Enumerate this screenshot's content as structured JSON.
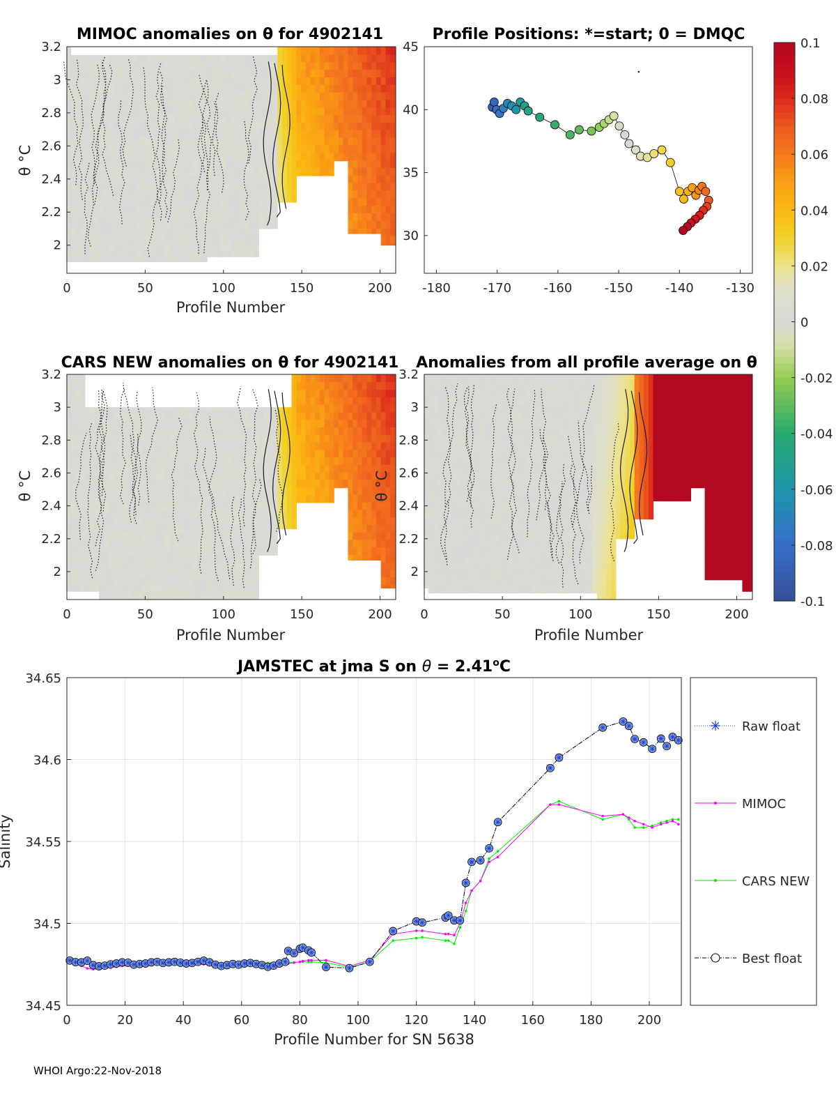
{
  "footer": "WHOI Argo:22-Nov-2018",
  "colors": {
    "raw_float": "#1f3fd0",
    "mimoc": "#ff00ff",
    "cars_new": "#00ee00",
    "best_float": "#000000",
    "no_anomaly": "#d8d8d8"
  },
  "chart_data": [
    {
      "type": "heatmap",
      "title": "MIMOC anomalies on θ  for 4902141",
      "xlabel": "Profile Number",
      "ylabel": "θ °C",
      "xlim": [
        0,
        210
      ],
      "ylim": [
        1.83,
        3.2
      ],
      "xticks": [
        "0",
        "50",
        "100",
        "150",
        "200"
      ],
      "yticks": [
        "2",
        "2.2",
        "2.4",
        "2.6",
        "2.8",
        "3",
        "3.2"
      ],
      "summary": "near-zero anomaly (gray) for profiles 0-135; positive anomalies 0.03-0.07 (yellow to orange) for profiles 140-210"
    },
    {
      "type": "scatter",
      "title": "Profile Positions: *=start; 0 = DMQC",
      "xlim": [
        -182,
        -128
      ],
      "ylim": [
        27,
        45
      ],
      "xticks": [
        "-180",
        "-170",
        "-160",
        "-150",
        "-140",
        "-130"
      ],
      "yticks": [
        "30",
        "35",
        "40",
        "45"
      ],
      "x": [
        -170.8,
        -170.5,
        -170.1,
        -169.6,
        -169.0,
        -168.3,
        -167.6,
        -166.9,
        -166.2,
        -165.5,
        -164.9,
        -163.0,
        -160.5,
        -158.0,
        -156.5,
        -154.5,
        -153.2,
        -152.4,
        -151.6,
        -150.8,
        -149.9,
        -149.0,
        -148.3,
        -147.2,
        -146.4,
        -145.3,
        -144.2,
        -142.9,
        -141.5,
        -140.0,
        -139.3,
        -138.6,
        -137.9,
        -137.3,
        -136.8,
        -136.3,
        -135.7,
        -135.2,
        -135.5,
        -136.1,
        -136.7,
        -137.4,
        -138.1,
        -138.7,
        -139.4
      ],
      "y": [
        40.2,
        40.6,
        40.0,
        39.7,
        40.1,
        40.5,
        40.3,
        40.0,
        40.6,
        40.3,
        39.9,
        39.4,
        38.8,
        38.0,
        38.4,
        38.3,
        38.6,
        38.9,
        39.2,
        39.5,
        38.7,
        38.0,
        37.3,
        36.8,
        36.3,
        36.2,
        36.5,
        36.8,
        35.8,
        33.5,
        32.9,
        33.5,
        33.8,
        33.2,
        33.6,
        33.9,
        33.5,
        32.8,
        32.3,
        32.0,
        31.6,
        31.3,
        31.0,
        30.7,
        30.4
      ],
      "color_by": "profile number"
    },
    {
      "type": "colorbar",
      "ticks": [
        "0.1",
        "0.08",
        "0.06",
        "0.04",
        "0.02",
        "0",
        "-0.02",
        "-0.04",
        "-0.06",
        "-0.08",
        "-0.1"
      ],
      "range": [
        -0.1,
        0.1
      ]
    },
    {
      "type": "heatmap",
      "title": "CARS NEW anomalies on θ for 4902141",
      "xlabel": "Profile Number",
      "ylabel": "θ °C",
      "xlim": [
        0,
        210
      ],
      "ylim": [
        1.83,
        3.2
      ],
      "xticks": [
        "0",
        "50",
        "100",
        "150",
        "200"
      ],
      "yticks": [
        "2",
        "2.2",
        "2.4",
        "2.6",
        "2.8",
        "3",
        "3.2"
      ],
      "summary": "near-zero anomaly for profiles 0-135; positive anomalies 0.03-0.07 for profiles 140-210"
    },
    {
      "type": "heatmap",
      "title": "Anomalies from all profile average on θ",
      "xlabel": "Profile Number",
      "ylabel": "θ °C",
      "xlim": [
        0,
        210
      ],
      "ylim": [
        1.83,
        3.2
      ],
      "xticks": [
        "0",
        "50",
        "100",
        "150",
        "200"
      ],
      "yticks": [
        "2",
        "2.2",
        "2.4",
        "2.6",
        "2.8",
        "3",
        "3.2"
      ],
      "summary": "near-zero anomaly for profiles 0-110; slight positive 110-135; strong positive >0.1 for profiles 148-210"
    },
    {
      "type": "line",
      "title": "JAMSTEC at jma S on θ = 2.41°C",
      "title_parts": [
        "JAMSTEC at jma S on ",
        "θ",
        " = 2.41",
        "o",
        "C"
      ],
      "xlabel": "Profile Number for SN 5638",
      "ylabel": "Salinity",
      "xlim": [
        0,
        211
      ],
      "ylim": [
        34.45,
        34.65
      ],
      "xticks": [
        "0",
        "20",
        "40",
        "60",
        "80",
        "100",
        "120",
        "140",
        "160",
        "180",
        "200"
      ],
      "yticks": [
        "34.45",
        "34.5",
        "34.55",
        "34.6",
        "34.65"
      ],
      "grid": true,
      "legend": [
        "Raw float",
        "MIMOC",
        "CARS NEW",
        "Best float"
      ],
      "legend_position": "outside-right",
      "x": [
        1,
        3,
        5,
        7,
        9,
        11,
        13,
        15,
        17,
        19,
        21,
        23,
        25,
        27,
        29,
        31,
        33,
        35,
        37,
        39,
        41,
        43,
        45,
        47,
        49,
        51,
        53,
        55,
        57,
        59,
        61,
        63,
        65,
        67,
        69,
        71,
        73,
        75,
        76,
        78,
        80,
        81,
        83,
        84,
        89,
        97,
        104,
        112,
        120,
        122,
        130,
        131,
        133,
        135,
        137,
        139,
        142,
        145,
        148,
        166,
        169,
        184,
        191,
        193,
        195,
        198,
        201,
        204,
        206,
        208,
        210
      ],
      "series": [
        {
          "name": "Raw float",
          "values": [
            34.4773,
            34.4763,
            34.4762,
            34.4772,
            34.4745,
            34.4738,
            34.4742,
            34.475,
            34.4755,
            34.4762,
            34.476,
            34.4748,
            34.4752,
            34.4755,
            34.4762,
            34.4765,
            34.4758,
            34.4762,
            34.4765,
            34.476,
            34.4755,
            34.4758,
            34.4765,
            34.4772,
            34.4762,
            34.4748,
            34.474,
            34.4745,
            34.4752,
            34.4748,
            34.4755,
            34.4758,
            34.4752,
            34.4745,
            34.4735,
            34.4742,
            34.4755,
            34.4765,
            34.4832,
            34.4818,
            34.4845,
            34.4852,
            34.4835,
            34.4822,
            34.4733,
            34.4727,
            34.4765,
            34.4953,
            34.5012,
            34.5005,
            34.5035,
            34.5048,
            34.5018,
            34.5018,
            34.5247,
            34.5375,
            34.5385,
            34.5458,
            34.5618,
            34.5948,
            34.6012,
            34.6195,
            34.6232,
            34.6205,
            34.6125,
            34.6105,
            34.6065,
            34.6128,
            34.6082,
            34.6138,
            34.6118
          ]
        },
        {
          "name": "MIMOC",
          "values": [
            34.4775,
            34.4755,
            34.474,
            34.4725,
            34.472,
            34.4722,
            34.4725,
            34.473,
            34.4735,
            34.474,
            34.4742,
            34.4745,
            34.4748,
            34.475,
            34.475,
            34.4752,
            34.4752,
            34.4752,
            34.4752,
            34.4752,
            34.475,
            34.475,
            34.475,
            34.475,
            34.4748,
            34.4748,
            34.4748,
            34.4748,
            34.4748,
            34.4748,
            34.4748,
            34.4748,
            34.4748,
            34.4748,
            34.4748,
            34.4748,
            34.475,
            34.4752,
            34.4755,
            34.476,
            34.4765,
            34.477,
            34.4775,
            34.4775,
            34.4775,
            34.4738,
            34.4775,
            34.4935,
            34.4955,
            34.4955,
            34.4935,
            34.4935,
            34.4928,
            34.5,
            34.5125,
            34.52,
            34.5258,
            34.5375,
            34.5405,
            34.5725,
            34.5725,
            34.5655,
            34.5665,
            34.5645,
            34.5625,
            34.5605,
            34.5585,
            34.5605,
            34.5615,
            34.5625,
            34.5605
          ]
        },
        {
          "name": "CARS NEW",
          "values": [
            34.4775,
            34.4768,
            34.476,
            34.4755,
            34.4752,
            34.4755,
            34.4758,
            34.476,
            34.476,
            34.476,
            34.4758,
            34.4758,
            34.4758,
            34.4758,
            34.4758,
            34.4758,
            34.4758,
            34.4758,
            34.4758,
            34.4758,
            34.4758,
            34.4758,
            34.4758,
            34.4758,
            34.4758,
            34.4758,
            34.4758,
            34.4758,
            34.4758,
            34.4758,
            34.4758,
            34.4758,
            34.4758,
            34.4758,
            34.4758,
            34.4758,
            34.4758,
            34.4758,
            34.476,
            34.4762,
            34.4765,
            34.4765,
            34.4765,
            34.4765,
            34.476,
            34.4732,
            34.4765,
            34.4895,
            34.491,
            34.4915,
            34.4895,
            34.4895,
            34.4875,
            34.4975,
            34.5075,
            34.52,
            34.526,
            34.5395,
            34.544,
            34.5725,
            34.5745,
            34.5635,
            34.5665,
            34.5635,
            34.5585,
            34.5585,
            34.5595,
            34.5615,
            34.5625,
            34.5635,
            34.5635
          ]
        },
        {
          "name": "Best float",
          "values": [
            34.4773,
            34.4763,
            34.4762,
            34.4772,
            34.4745,
            34.4738,
            34.4742,
            34.475,
            34.4755,
            34.4762,
            34.476,
            34.4748,
            34.4752,
            34.4755,
            34.4762,
            34.4765,
            34.4758,
            34.4762,
            34.4765,
            34.476,
            34.4755,
            34.4758,
            34.4765,
            34.4772,
            34.4762,
            34.4748,
            34.474,
            34.4745,
            34.4752,
            34.4748,
            34.4755,
            34.4758,
            34.4752,
            34.4745,
            34.4735,
            34.4742,
            34.4755,
            34.4765,
            34.4832,
            34.4818,
            34.4845,
            34.4852,
            34.4835,
            34.4822,
            34.4733,
            34.4727,
            34.4765,
            34.4953,
            34.5012,
            34.5005,
            34.5035,
            34.5048,
            34.5018,
            34.5018,
            34.5247,
            34.5375,
            34.5385,
            34.5458,
            34.5618,
            34.5948,
            34.6012,
            34.6195,
            34.6232,
            34.6205,
            34.6125,
            34.6105,
            34.6065,
            34.6128,
            34.6082,
            34.6138,
            34.6118
          ]
        }
      ]
    }
  ]
}
